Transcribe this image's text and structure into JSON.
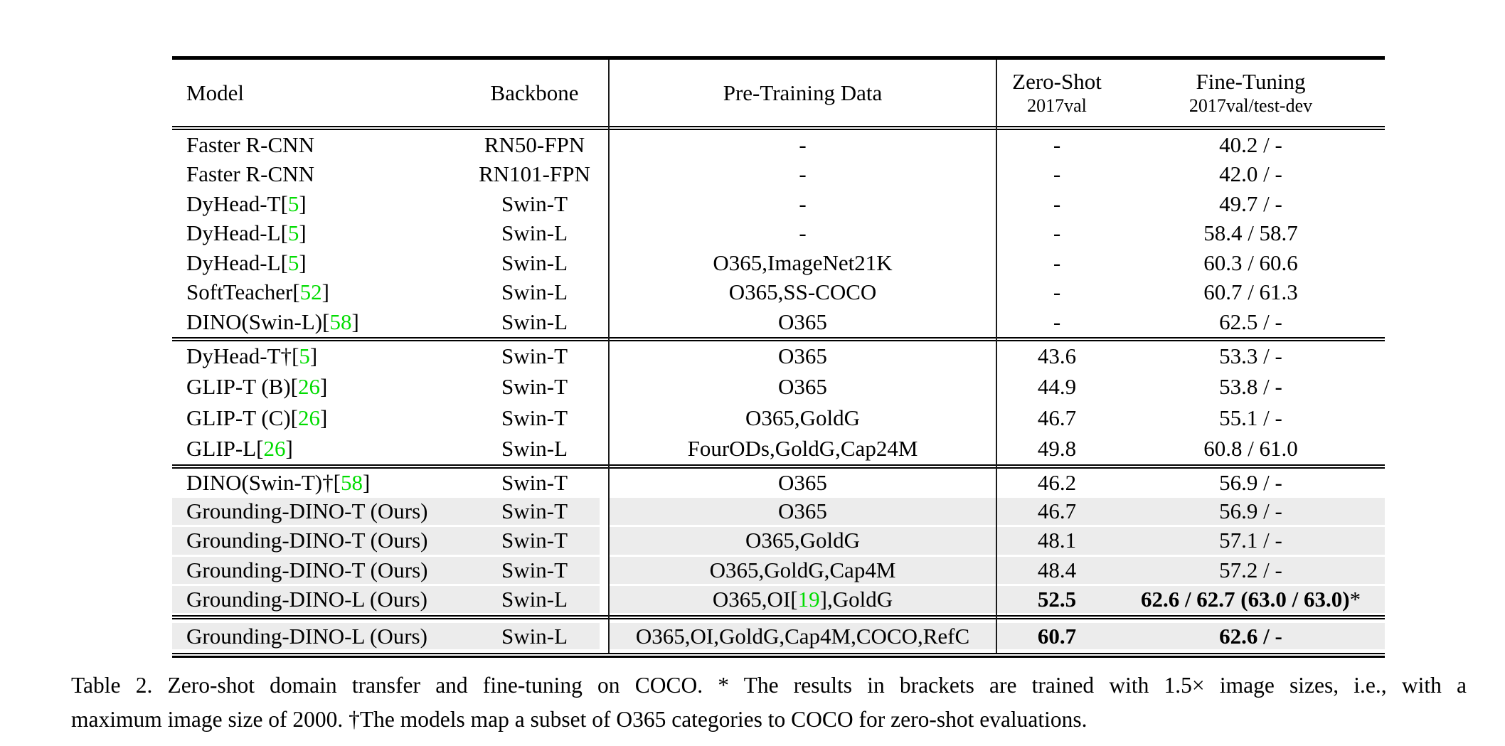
{
  "colors": {
    "highlight": "#ececec",
    "citation_green": "#00dc00"
  },
  "table": {
    "header": {
      "model": "Model",
      "backbone": "Backbone",
      "pretrain": "Pre-Training Data",
      "zero_shot_line1": "Zero-Shot",
      "zero_shot_line2": "2017val",
      "fine_tuning_line1": "Fine-Tuning",
      "fine_tuning_line2": "2017val/test-dev"
    },
    "blocks": [
      {
        "rows": [
          {
            "model": "Faster R-CNN",
            "citation": "",
            "backbone": "RN50-FPN",
            "pretrain_pre": "-",
            "pretrain_cite": "",
            "pretrain_post": "",
            "zero_shot": "-",
            "fine_tuning": "40.2 / -",
            "star": "",
            "highlighted": false,
            "bold": false
          },
          {
            "model": "Faster R-CNN",
            "citation": "",
            "backbone": "RN101-FPN",
            "pretrain_pre": "-",
            "pretrain_cite": "",
            "pretrain_post": "",
            "zero_shot": "-",
            "fine_tuning": "42.0 / -",
            "star": "",
            "highlighted": false,
            "bold": false
          },
          {
            "model": "DyHead-T",
            "citation": "5",
            "backbone": "Swin-T",
            "pretrain_pre": "-",
            "pretrain_cite": "",
            "pretrain_post": "",
            "zero_shot": "-",
            "fine_tuning": "49.7 / -",
            "star": "",
            "highlighted": false,
            "bold": false
          },
          {
            "model": "DyHead-L",
            "citation": "5",
            "backbone": "Swin-L",
            "pretrain_pre": "-",
            "pretrain_cite": "",
            "pretrain_post": "",
            "zero_shot": "-",
            "fine_tuning": "58.4 / 58.7",
            "star": "",
            "highlighted": false,
            "bold": false
          },
          {
            "model": "DyHead-L",
            "citation": "5",
            "backbone": "Swin-L",
            "pretrain_pre": "O365,ImageNet21K",
            "pretrain_cite": "",
            "pretrain_post": "",
            "zero_shot": "-",
            "fine_tuning": "60.3 / 60.6",
            "star": "",
            "highlighted": false,
            "bold": false
          },
          {
            "model": "SoftTeacher",
            "citation": "52",
            "backbone": "Swin-L",
            "pretrain_pre": "O365,SS-COCO",
            "pretrain_cite": "",
            "pretrain_post": "",
            "zero_shot": "-",
            "fine_tuning": "60.7 / 61.3",
            "star": "",
            "highlighted": false,
            "bold": false
          },
          {
            "model": "DINO(Swin-L)",
            "citation": "58",
            "backbone": "Swin-L",
            "pretrain_pre": "O365",
            "pretrain_cite": "",
            "pretrain_post": "",
            "zero_shot": "-",
            "fine_tuning": "62.5 / -",
            "star": "",
            "highlighted": false,
            "bold": false
          }
        ]
      },
      {
        "rows": [
          {
            "model": "DyHead-T†",
            "citation": "5",
            "backbone": "Swin-T",
            "pretrain_pre": "O365",
            "pretrain_cite": "",
            "pretrain_post": "",
            "zero_shot": "43.6",
            "fine_tuning": "53.3 / -",
            "star": "",
            "highlighted": false,
            "bold": false
          },
          {
            "model": "GLIP-T (B)",
            "citation": "26",
            "backbone": "Swin-T",
            "pretrain_pre": "O365",
            "pretrain_cite": "",
            "pretrain_post": "",
            "zero_shot": "44.9",
            "fine_tuning": "53.8 / -",
            "star": "",
            "highlighted": false,
            "bold": false
          },
          {
            "model": "GLIP-T (C)",
            "citation": "26",
            "backbone": "Swin-T",
            "pretrain_pre": "O365,GoldG",
            "pretrain_cite": "",
            "pretrain_post": "",
            "zero_shot": "46.7",
            "fine_tuning": "55.1 / -",
            "star": "",
            "highlighted": false,
            "bold": false
          },
          {
            "model": "GLIP-L",
            "citation": "26",
            "backbone": "Swin-L",
            "pretrain_pre": "FourODs,GoldG,Cap24M",
            "pretrain_cite": "",
            "pretrain_post": "",
            "zero_shot": "49.8",
            "fine_tuning": "60.8 / 61.0",
            "star": "",
            "highlighted": false,
            "bold": false
          }
        ]
      },
      {
        "rows": [
          {
            "model": "DINO(Swin-T)†",
            "citation": "58",
            "backbone": "Swin-T",
            "pretrain_pre": "O365",
            "pretrain_cite": "",
            "pretrain_post": "",
            "zero_shot": "46.2",
            "fine_tuning": "56.9 / -",
            "star": "",
            "highlighted": false,
            "bold": false
          },
          {
            "model": "Grounding-DINO-T (Ours)",
            "citation": "",
            "backbone": "Swin-T",
            "pretrain_pre": "O365",
            "pretrain_cite": "",
            "pretrain_post": "",
            "zero_shot": "46.7",
            "fine_tuning": "56.9 / -",
            "star": "",
            "highlighted": true,
            "bold": false
          },
          {
            "model": "Grounding-DINO-T (Ours)",
            "citation": "",
            "backbone": "Swin-T",
            "pretrain_pre": "O365,GoldG",
            "pretrain_cite": "",
            "pretrain_post": "",
            "zero_shot": "48.1",
            "fine_tuning": "57.1 / -",
            "star": "",
            "highlighted": true,
            "bold": false
          },
          {
            "model": "Grounding-DINO-T (Ours)",
            "citation": "",
            "backbone": "Swin-T",
            "pretrain_pre": "O365,GoldG,Cap4M",
            "pretrain_cite": "",
            "pretrain_post": "",
            "zero_shot": "48.4",
            "fine_tuning": "57.2 / -",
            "star": "",
            "highlighted": true,
            "bold": false
          },
          {
            "model": "Grounding-DINO-L (Ours)",
            "citation": "",
            "backbone": "Swin-L",
            "pretrain_pre": "O365,OI",
            "pretrain_cite": "19",
            "pretrain_post": ",GoldG",
            "zero_shot": "52.5",
            "fine_tuning": "62.6 / 62.7 (63.0 / 63.0)",
            "star": "*",
            "highlighted": true,
            "bold": true
          }
        ]
      },
      {
        "rows": [
          {
            "model": "Grounding-DINO-L (Ours)",
            "citation": "",
            "backbone": "Swin-L",
            "pretrain_pre": "O365,OI,GoldG,Cap4M,COCO,RefC",
            "pretrain_cite": "",
            "pretrain_post": "",
            "zero_shot": "60.7",
            "fine_tuning": "62.6 / -",
            "star": "",
            "highlighted": true,
            "bold": true
          }
        ]
      }
    ]
  },
  "caption": {
    "line1": "Table 2.  Zero-shot domain transfer and fine-tuning on COCO. * The results in brackets are trained with 1.5× image sizes, i.e., with a",
    "line2": "maximum image size of 2000. †The models map a subset of O365 categories to COCO for zero-shot evaluations."
  }
}
